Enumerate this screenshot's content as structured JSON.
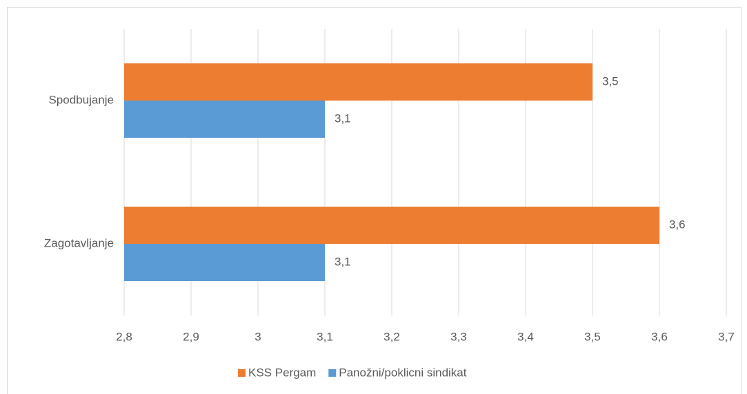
{
  "chart_data": {
    "type": "hbar",
    "categories": [
      "Spodbujanje",
      "Zagotavljanje"
    ],
    "series": [
      {
        "name": "KSS Pergam",
        "color": "#ED7D31",
        "values": [
          3.5,
          3.6
        ],
        "value_labels": [
          "3,5",
          "3,6"
        ]
      },
      {
        "name": "Panožni/poklicni sindikat",
        "color": "#5B9BD5",
        "values": [
          3.1,
          3.1
        ],
        "value_labels": [
          "3,1",
          "3,1"
        ]
      }
    ],
    "xlim": [
      2.8,
      3.7
    ],
    "xticks": [
      {
        "value": 2.8,
        "label": "2,8"
      },
      {
        "value": 2.9,
        "label": "2,9"
      },
      3,
      {
        "value": 3.1,
        "label": "3,1"
      },
      {
        "value": 3.2,
        "label": "3,2"
      },
      {
        "value": 3.3,
        "label": "3,3"
      },
      {
        "value": 3.4,
        "label": "3,4"
      },
      {
        "value": 3.5,
        "label": "3,5"
      },
      {
        "value": 3.6,
        "label": "3,6"
      },
      {
        "value": 3.7,
        "label": "3,7"
      }
    ],
    "grid": true,
    "legend": "bottom"
  }
}
